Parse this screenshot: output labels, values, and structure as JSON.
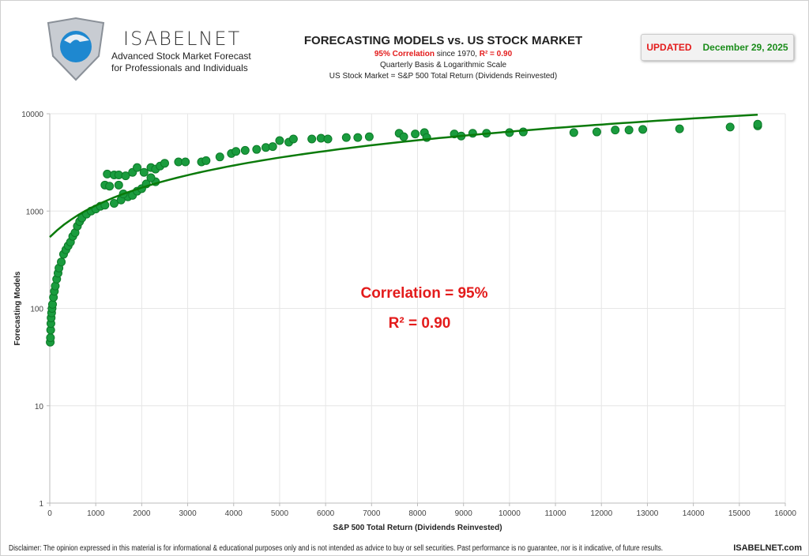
{
  "header": {
    "brand": "ISABELNET",
    "tagline1": "Advanced Stock Market Forecast",
    "tagline2": "for Professionals and Individuals",
    "title": "FORECASTING MODELS vs. US STOCK MARKET",
    "subtitle_red": "95% Correlation",
    "subtitle_mid": " since 1970, ",
    "subtitle_r2": "R² = 0.90",
    "line3": "Quarterly Basis & Logarithmic Scale",
    "line4": "US Stock Market = S&P 500 Total Return (Dividends Reinvested)",
    "updated_label": "UPDATED",
    "updated_date": "December 29, 2025"
  },
  "colors": {
    "points": "#1a9c3e",
    "point_edge": "#0c7a28",
    "trend": "#0a7a0a",
    "annotation": "#e31b1b",
    "date": "#1a8c1a"
  },
  "chart_data": {
    "type": "scatter",
    "xlabel": "S&P 500 Total Return (Dividends Reinvested)",
    "ylabel": "Forecasting Models",
    "xlim": [
      0,
      16000
    ],
    "ylim": [
      1,
      10000
    ],
    "yscale": "log",
    "grid": true,
    "xticks": [
      "0",
      "1000",
      "2000",
      "3000",
      "4000",
      "5000",
      "6000",
      "7000",
      "8000",
      "9000",
      "10000",
      "11000",
      "12000",
      "13000",
      "14000",
      "15000",
      "16000"
    ],
    "yticks": [
      "1",
      "10",
      "100",
      "1000",
      "10000"
    ],
    "trendline": {
      "type": "linear",
      "intercept": 540,
      "slope": 0.6,
      "x_range": [
        0,
        15400
      ]
    },
    "annotations": [
      "Correlation = 95%",
      "R² = 0.90"
    ],
    "points": [
      [
        10,
        45
      ],
      [
        15,
        50
      ],
      [
        20,
        60
      ],
      [
        25,
        70
      ],
      [
        30,
        80
      ],
      [
        40,
        90
      ],
      [
        50,
        100
      ],
      [
        60,
        110
      ],
      [
        80,
        130
      ],
      [
        100,
        150
      ],
      [
        120,
        170
      ],
      [
        150,
        200
      ],
      [
        180,
        230
      ],
      [
        200,
        260
      ],
      [
        250,
        300
      ],
      [
        300,
        360
      ],
      [
        350,
        400
      ],
      [
        400,
        440
      ],
      [
        450,
        480
      ],
      [
        500,
        550
      ],
      [
        550,
        600
      ],
      [
        600,
        700
      ],
      [
        650,
        780
      ],
      [
        700,
        850
      ],
      [
        800,
        930
      ],
      [
        900,
        1000
      ],
      [
        1000,
        1050
      ],
      [
        1100,
        1120
      ],
      [
        1200,
        1150
      ],
      [
        1400,
        1200
      ],
      [
        1550,
        1300
      ],
      [
        1700,
        1400
      ],
      [
        1800,
        1450
      ],
      [
        1600,
        1500
      ],
      [
        1900,
        1600
      ],
      [
        2000,
        1700
      ],
      [
        2100,
        1900
      ],
      [
        2300,
        2000
      ],
      [
        2200,
        2200
      ],
      [
        1200,
        1850
      ],
      [
        1300,
        1800
      ],
      [
        1500,
        1850
      ],
      [
        1250,
        2400
      ],
      [
        1400,
        2350
      ],
      [
        1500,
        2350
      ],
      [
        1650,
        2300
      ],
      [
        1800,
        2500
      ],
      [
        1900,
        2800
      ],
      [
        2050,
        2500
      ],
      [
        2200,
        2800
      ],
      [
        2300,
        2700
      ],
      [
        2400,
        2900
      ],
      [
        2500,
        3100
      ],
      [
        2800,
        3200
      ],
      [
        2950,
        3200
      ],
      [
        3300,
        3200
      ],
      [
        3400,
        3300
      ],
      [
        3700,
        3600
      ],
      [
        3950,
        3900
      ],
      [
        4050,
        4100
      ],
      [
        4250,
        4200
      ],
      [
        4500,
        4300
      ],
      [
        4700,
        4500
      ],
      [
        4850,
        4600
      ],
      [
        5000,
        5300
      ],
      [
        5200,
        5100
      ],
      [
        5300,
        5500
      ],
      [
        5700,
        5500
      ],
      [
        5900,
        5600
      ],
      [
        6050,
        5500
      ],
      [
        6450,
        5700
      ],
      [
        6700,
        5700
      ],
      [
        6950,
        5800
      ],
      [
        7600,
        6300
      ],
      [
        7700,
        5800
      ],
      [
        7950,
        6200
      ],
      [
        8150,
        6400
      ],
      [
        8200,
        5700
      ],
      [
        8800,
        6200
      ],
      [
        8950,
        5900
      ],
      [
        9200,
        6300
      ],
      [
        9500,
        6300
      ],
      [
        10000,
        6400
      ],
      [
        10300,
        6500
      ],
      [
        11400,
        6400
      ],
      [
        11900,
        6500
      ],
      [
        12300,
        6800
      ],
      [
        12600,
        6800
      ],
      [
        12900,
        6900
      ],
      [
        13700,
        7000
      ],
      [
        14800,
        7300
      ],
      [
        15400,
        7500
      ],
      [
        15400,
        7800
      ]
    ]
  },
  "footer": {
    "disclaimer": "Disclaimer: The opinion expressed in this material is for informational & educational purposes only and is not intended as advice to buy or sell securities. Past performance is no guarantee, nor is it indicative, of future results.",
    "site": "ISABELNET.com"
  }
}
